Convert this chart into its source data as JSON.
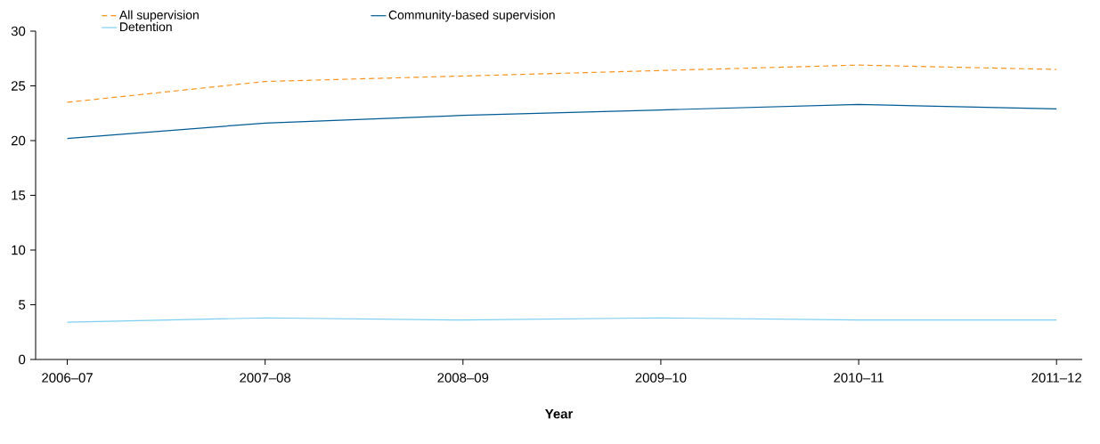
{
  "chart_data": {
    "type": "line",
    "xlabel": "Year",
    "categories": [
      "2006–07",
      "2007–08",
      "2008–09",
      "2009–10",
      "2010–11",
      "2011–12"
    ],
    "series": [
      {
        "name": "All supervision",
        "color": "#f7941d",
        "line_style": "dashed",
        "values": [
          23.5,
          25.4,
          25.9,
          26.4,
          26.9,
          26.5
        ]
      },
      {
        "name": "Community-based supervision",
        "color": "#005a96",
        "line_style": "solid",
        "values": [
          20.2,
          21.6,
          22.3,
          22.8,
          23.3,
          22.9
        ]
      },
      {
        "name": "Detention",
        "color": "#7dcfef",
        "line_style": "solid",
        "values": [
          3.4,
          3.8,
          3.6,
          3.8,
          3.6,
          3.6
        ]
      }
    ],
    "ylim": [
      0,
      30
    ],
    "yticks": [
      0,
      5,
      10,
      15,
      20,
      25,
      30
    ],
    "grid": false,
    "legend": "top"
  }
}
